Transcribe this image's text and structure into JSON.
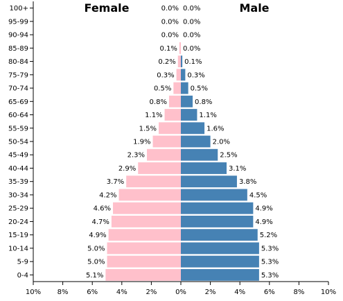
{
  "chart_data": {
    "type": "bar",
    "orientation": "horizontal-pyramid",
    "categories": [
      "100+",
      "95-99",
      "90-94",
      "85-89",
      "80-84",
      "75-79",
      "70-74",
      "65-69",
      "60-64",
      "55-59",
      "50-54",
      "45-49",
      "40-44",
      "35-39",
      "30-34",
      "25-29",
      "20-24",
      "15-19",
      "10-14",
      "5-9",
      "0-4"
    ],
    "series": [
      {
        "name": "Female",
        "color": "#ffc0cb",
        "values": [
          0.0,
          0.0,
          0.0,
          0.1,
          0.2,
          0.3,
          0.5,
          0.8,
          1.1,
          1.5,
          1.9,
          2.3,
          2.9,
          3.7,
          4.2,
          4.6,
          4.7,
          4.9,
          5.0,
          5.0,
          5.1
        ],
        "labels": [
          "0.0%",
          "0.0%",
          "0.0%",
          "0.1%",
          "0.2%",
          "0.3%",
          "0.5%",
          "0.8%",
          "1.1%",
          "1.5%",
          "1.9%",
          "2.3%",
          "2.9%",
          "3.7%",
          "4.2%",
          "4.6%",
          "4.7%",
          "4.9%",
          "5.0%",
          "5.0%",
          "5.1%"
        ]
      },
      {
        "name": "Male",
        "color": "#4682b4",
        "values": [
          0.0,
          0.0,
          0.0,
          0.0,
          0.1,
          0.3,
          0.5,
          0.8,
          1.1,
          1.6,
          2.0,
          2.5,
          3.1,
          3.8,
          4.5,
          4.9,
          4.9,
          5.2,
          5.3,
          5.3,
          5.3
        ],
        "labels": [
          "0.0%",
          "0.0%",
          "0.0%",
          "0.0%",
          "0.1%",
          "0.3%",
          "0.5%",
          "0.8%",
          "1.1%",
          "1.6%",
          "2.0%",
          "2.5%",
          "3.1%",
          "3.8%",
          "4.5%",
          "4.9%",
          "4.9%",
          "5.2%",
          "5.3%",
          "5.3%",
          "5.3%"
        ]
      }
    ],
    "xlim": [
      -10,
      10
    ],
    "xticks": [
      -10,
      -8,
      -6,
      -4,
      -2,
      0,
      2,
      4,
      6,
      8,
      10
    ],
    "xtick_labels": [
      "10%",
      "8%",
      "6%",
      "4%",
      "2%",
      "0%",
      "2%",
      "4%",
      "6%",
      "8%",
      "10%"
    ],
    "legend_placement": "top",
    "grid": false,
    "title": "",
    "xlabel": "",
    "ylabel": ""
  }
}
